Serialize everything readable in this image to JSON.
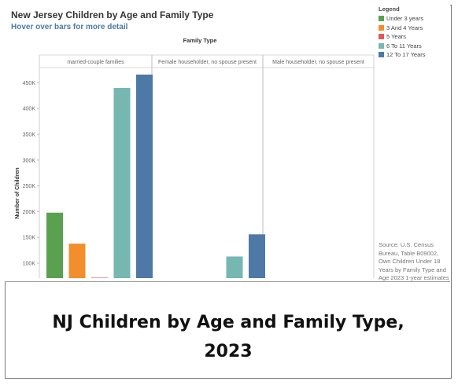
{
  "title": "New Jersey Children by Age and Family Type",
  "subtitle": "Hover over bars for more detail",
  "legend": {
    "title": "Legend",
    "items": [
      {
        "label": "Under 3 years",
        "color": "#59a14f"
      },
      {
        "label": "3 And 4 Years",
        "color": "#f28e2b"
      },
      {
        "label": "5 Years",
        "color": "#e15759"
      },
      {
        "label": "6 To 11 Years",
        "color": "#76b7b2"
      },
      {
        "label": "12 To 17 Years",
        "color": "#4e79a7"
      }
    ]
  },
  "source_note": "Source: U.S. Census Bureau, Table B09002, Own Children Under 18 Years by Family Type and Age 2023 1-year estimates",
  "caption_line1": "NJ Children by Age and Family Type,",
  "caption_line2": "2023",
  "chart_data": {
    "type": "bar",
    "column_header_title": "Family Type",
    "column_headers": [
      "married-couple families",
      "Female householder, no spouse present",
      "Male householder, no spouse present"
    ],
    "series_names": [
      "Under 3 years",
      "3 And 4 Years",
      "5 Years",
      "6 To 11 Years",
      "12 To 17 Years"
    ],
    "values": [
      [
        198000,
        138000,
        72000,
        440000,
        466000
      ],
      [
        null,
        null,
        null,
        113000,
        156000
      ],
      [
        null,
        null,
        null,
        null,
        null
      ]
    ],
    "ylabel": "Number of Children",
    "yticks": [
      "100K",
      "150K",
      "200K",
      "250K",
      "300K",
      "350K",
      "400K",
      "450K"
    ],
    "ylim": [
      70000,
      490000
    ]
  }
}
